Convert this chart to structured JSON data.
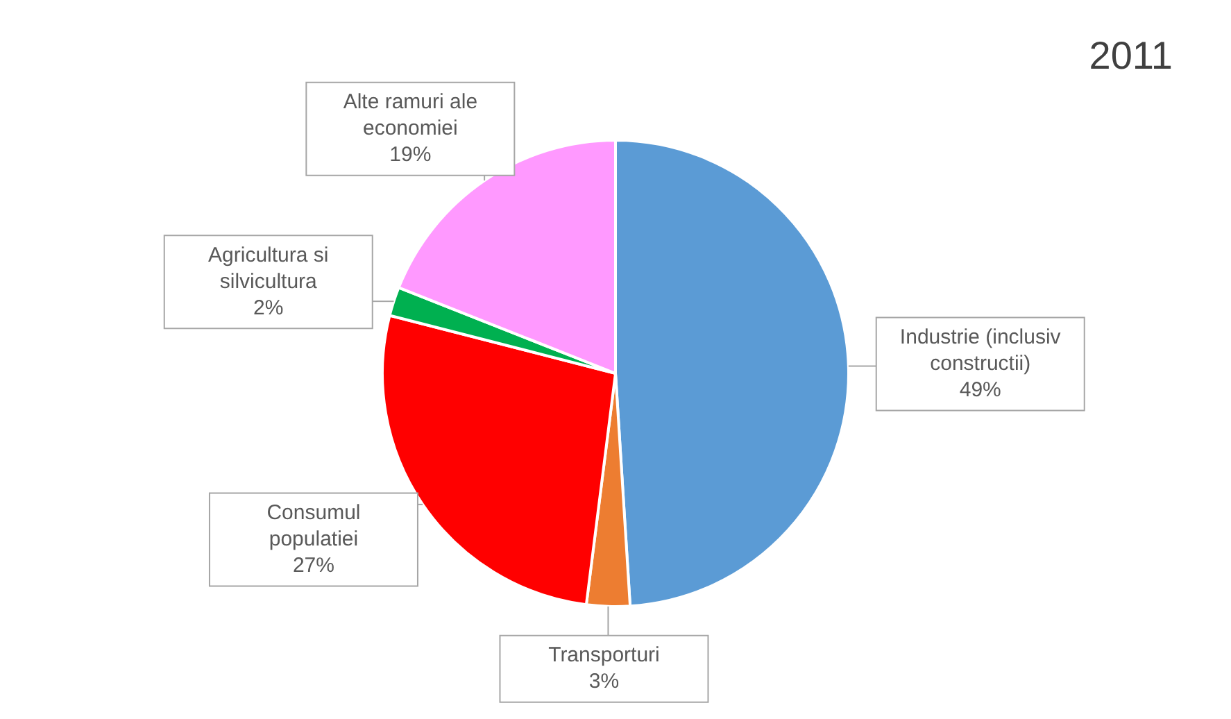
{
  "chart_data": {
    "type": "pie",
    "title": "2011",
    "categories": [
      "Industrie (inclusiv constructii)",
      "Transporturi",
      "Consumul populatiei",
      "Agricultura si silvicultura",
      "Alte ramuri ale economiei"
    ],
    "values": [
      49,
      3,
      27,
      2,
      19
    ],
    "colors": [
      "#5b9bd5",
      "#ed7d31",
      "#ff0000",
      "#00b050",
      "#ff99ff"
    ],
    "value_labels": [
      "49%",
      "3%",
      "27%",
      "2%",
      "19%"
    ],
    "legend": false
  }
}
